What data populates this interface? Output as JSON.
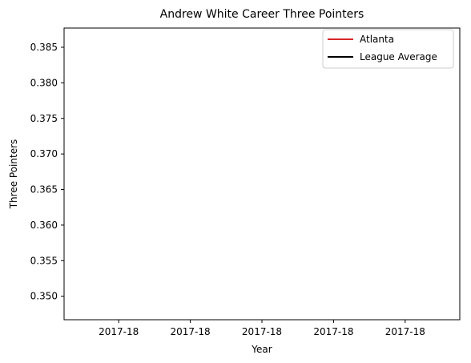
{
  "chart_data": {
    "type": "line",
    "title": "Andrew White  Career Three Pointers",
    "xlabel": "Year",
    "ylabel": "Three Pointers",
    "x_tick_labels": [
      "2017-18",
      "2017-18",
      "2017-18",
      "2017-18",
      "2017-18"
    ],
    "y_ticks": [
      0.35,
      0.355,
      0.36,
      0.365,
      0.37,
      0.375,
      0.38,
      0.385
    ],
    "y_tick_labels": [
      "0.350",
      "0.355",
      "0.360",
      "0.365",
      "0.370",
      "0.375",
      "0.380",
      "0.385"
    ],
    "ylim": [
      0.3467,
      0.3877
    ],
    "grid": false,
    "legend_position": "upper right",
    "series": [
      {
        "name": "Atlanta",
        "color": "#d62728",
        "values": []
      },
      {
        "name": "League Average",
        "color": "#000000",
        "values": []
      }
    ]
  }
}
